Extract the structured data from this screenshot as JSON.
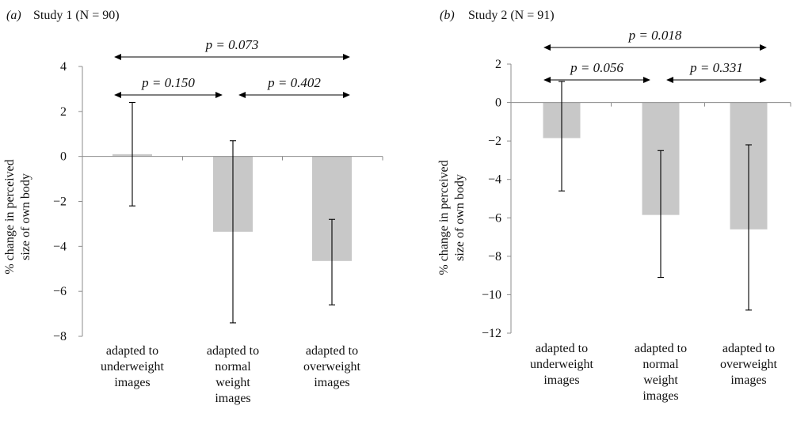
{
  "chart_data": [
    {
      "type": "bar",
      "panel_label": "(a)",
      "title": "Study 1 (N = 90)",
      "ylabel": "% change in perceived size of own body",
      "ylabel_lines": [
        "% change in perceived",
        "size of own body"
      ],
      "ylim": [
        -8,
        4
      ],
      "yticks": [
        4,
        2,
        0,
        -2,
        -4,
        -6,
        -8
      ],
      "categories": [
        [
          "adapted to",
          "underweight",
          "images"
        ],
        [
          "adapted to",
          "normal",
          "weight",
          "images"
        ],
        [
          "adapted to",
          "overweight",
          "images"
        ]
      ],
      "values": [
        0.1,
        -3.35,
        -4.65
      ],
      "error_low": [
        -2.2,
        -7.4,
        -6.6
      ],
      "error_high": [
        2.4,
        0.7,
        -2.8
      ],
      "comparisons": [
        {
          "from": 0,
          "to": 2,
          "label": "p = 0.073",
          "level": 2
        },
        {
          "from": 0,
          "to": 1,
          "label": "p = 0.150",
          "level": 1
        },
        {
          "from": 1,
          "to": 2,
          "label": "p = 0.402",
          "level": 1
        }
      ]
    },
    {
      "type": "bar",
      "panel_label": "(b)",
      "title": "Study 2 (N = 91)",
      "ylabel": "% change in perceived size of own body",
      "ylabel_lines": [
        "% change in perceived",
        "size of own body"
      ],
      "ylim": [
        -12,
        2
      ],
      "yticks": [
        2,
        0,
        -2,
        -4,
        -6,
        -8,
        -10,
        -12
      ],
      "categories": [
        [
          "adapted to",
          "underweight",
          "images"
        ],
        [
          "adapted to",
          "normal",
          "weight",
          "images"
        ],
        [
          "adapted to",
          "overweight",
          "images"
        ]
      ],
      "values": [
        -1.85,
        -5.85,
        -6.6
      ],
      "error_low": [
        -4.6,
        -9.1,
        -10.8
      ],
      "error_high": [
        1.1,
        -2.5,
        -2.2
      ],
      "comparisons": [
        {
          "from": 0,
          "to": 2,
          "label": "p = 0.018",
          "level": 2
        },
        {
          "from": 0,
          "to": 1,
          "label": "p = 0.056",
          "level": 1
        },
        {
          "from": 1,
          "to": 2,
          "label": "p = 0.331",
          "level": 1
        }
      ]
    }
  ],
  "colors": {
    "bar": "#c8c8c8",
    "axis": "#8c8c8c",
    "error": "#000000"
  }
}
